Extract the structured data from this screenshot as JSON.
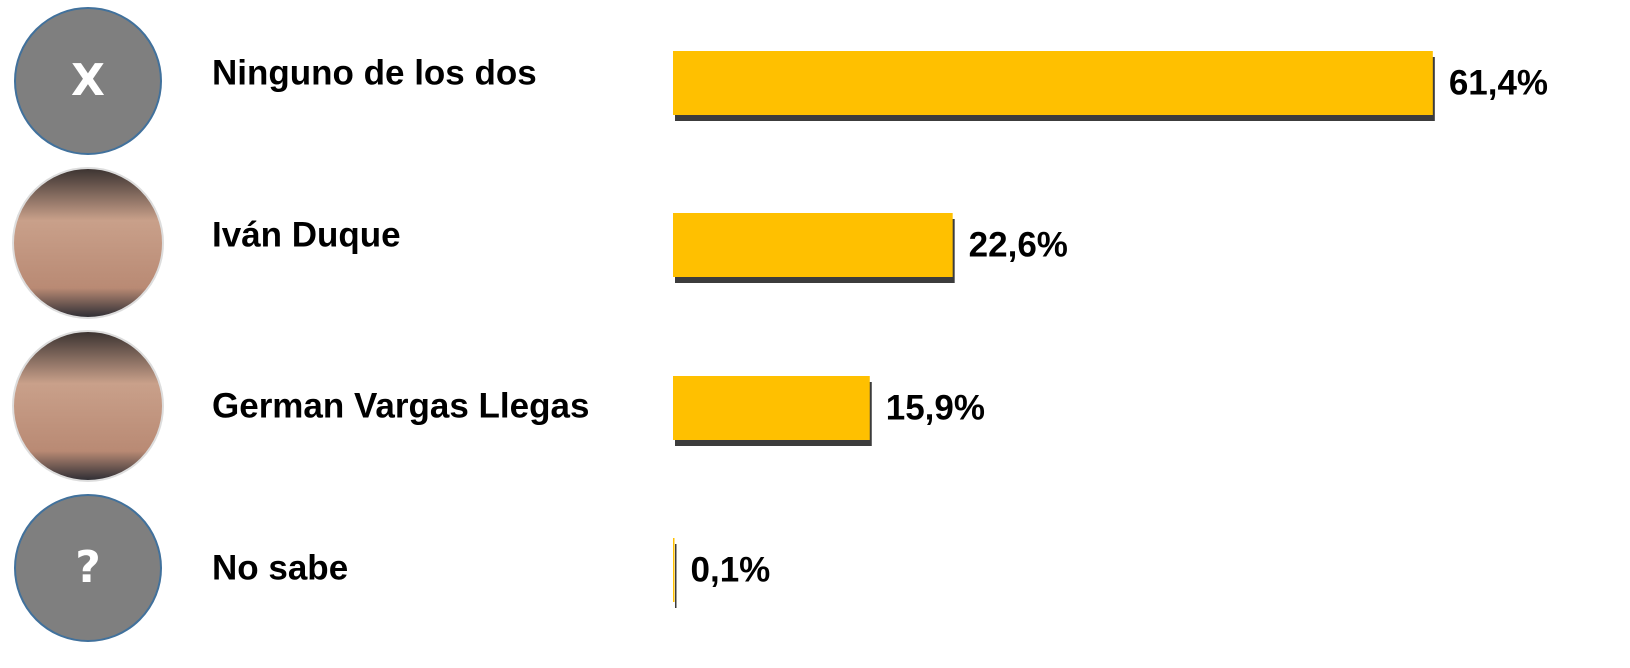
{
  "chart_data": {
    "type": "bar",
    "categories": [
      "Ninguno de los dos",
      "Iván Duque",
      "German Vargas Llegas",
      "No sabe"
    ],
    "values": [
      61.4,
      22.6,
      15.9,
      0.1
    ],
    "value_labels": [
      "61,4%",
      "22,6%",
      "15,9%",
      "0,1%"
    ],
    "icons": [
      "X",
      null,
      null,
      "?"
    ],
    "color": "#ffc000",
    "xlim": [
      0,
      72
    ]
  }
}
